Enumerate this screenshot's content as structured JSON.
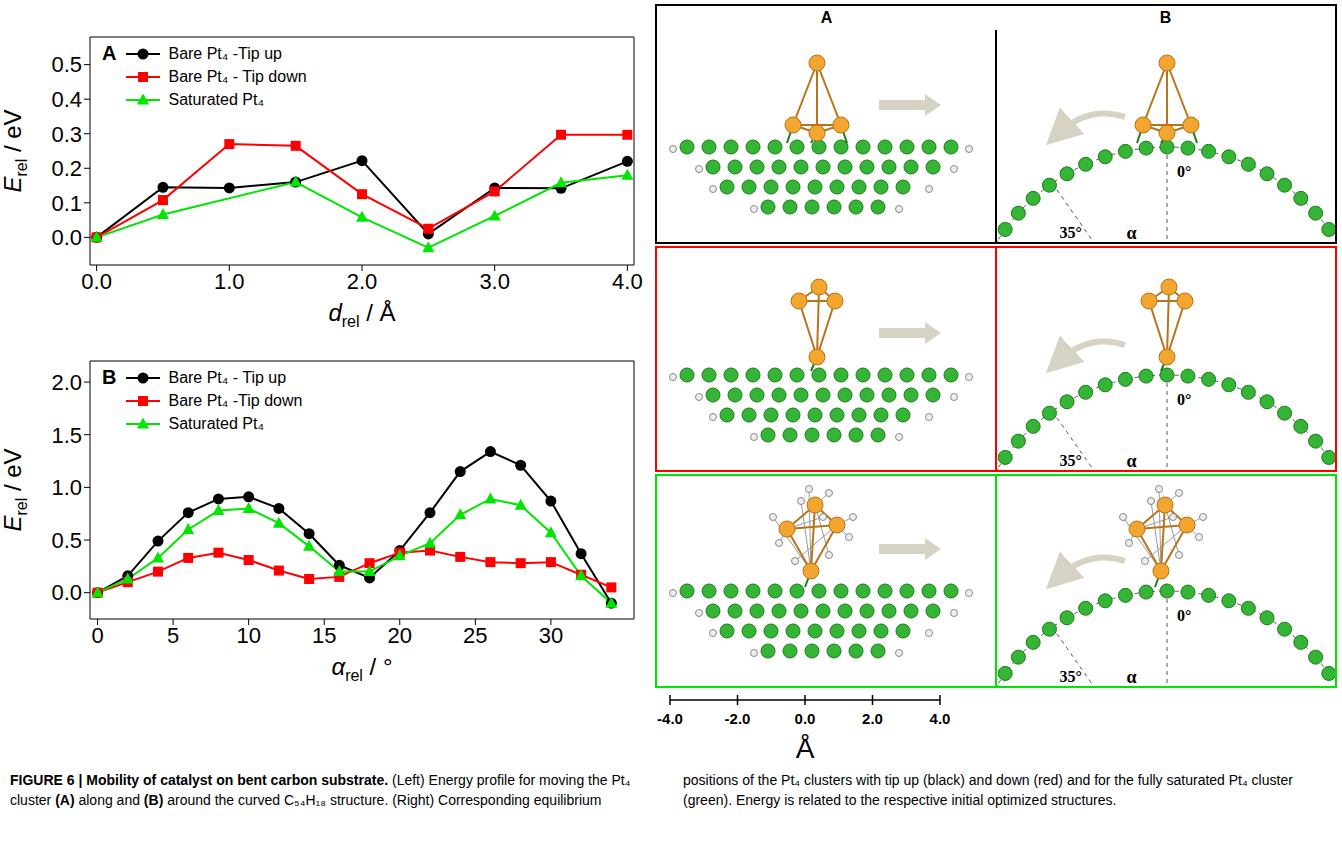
{
  "chart_data": [
    {
      "type": "line",
      "panel_label": "A",
      "xlabel": [
        "d",
        "rel",
        " / Å"
      ],
      "ylabel": [
        "E",
        "rel",
        " / eV"
      ],
      "x": [
        0,
        0.5,
        1,
        1.5,
        2,
        2.5,
        3,
        3.5,
        4
      ],
      "series": [
        {
          "name": "Bare Pt₄ -Tip up",
          "color": "#000000",
          "marker": "circle",
          "values": [
            0,
            0.145,
            0.143,
            0.16,
            0.222,
            0.01,
            0.143,
            0.142,
            0.22
          ]
        },
        {
          "name": "Bare Pt₄ - Tip down",
          "color": "#ff0000",
          "marker": "square",
          "values": [
            0,
            0.108,
            0.27,
            0.265,
            0.125,
            0.025,
            0.133,
            0.297,
            0.297
          ]
        },
        {
          "name": "Saturated Pt₄",
          "color": "#00e600",
          "marker": "triangle",
          "x": [
            0,
            0.5,
            1.5,
            2,
            2.5,
            3,
            3.5,
            4
          ],
          "values": [
            0,
            0.066,
            0.16,
            0.058,
            -0.03,
            0.062,
            0.158,
            0.18
          ]
        }
      ],
      "xlim": [
        -0.05,
        4.05
      ],
      "xticks": [
        {
          "value": 0,
          "label": "0.0"
        },
        {
          "value": 1,
          "label": "1.0"
        },
        {
          "value": 2,
          "label": "2.0"
        },
        {
          "value": 3,
          "label": "3.0"
        },
        {
          "value": 4,
          "label": "4.0"
        }
      ],
      "ylim": [
        -0.08,
        0.58
      ],
      "yticks": [
        {
          "value": 0,
          "label": "0.0"
        },
        {
          "value": 0.1,
          "label": "0.1"
        },
        {
          "value": 0.2,
          "label": "0.2"
        },
        {
          "value": 0.3,
          "label": "0.3"
        },
        {
          "value": 0.4,
          "label": "0.4"
        },
        {
          "value": 0.5,
          "label": "0.5"
        }
      ],
      "legend": "upper left",
      "grid": false
    },
    {
      "type": "line",
      "panel_label": "B",
      "xlabel": [
        "α",
        "rel",
        " / °"
      ],
      "ylabel": [
        "E",
        "rel",
        " / eV"
      ],
      "x": [
        0,
        2,
        4,
        6,
        8,
        10,
        12,
        14,
        16,
        18,
        20,
        22,
        24,
        26,
        28,
        30,
        32,
        34
      ],
      "series": [
        {
          "name": "Bare Pt₄ - Tip up",
          "color": "#000000",
          "marker": "circle",
          "values": [
            0,
            0.16,
            0.49,
            0.76,
            0.89,
            0.91,
            0.8,
            0.56,
            0.26,
            0.14,
            0.4,
            0.76,
            1.15,
            1.34,
            1.21,
            0.87,
            0.37,
            -0.1
          ]
        },
        {
          "name": "Bare Pt₄ -Tip down",
          "color": "#ff0000",
          "marker": "square",
          "values": [
            0,
            0.1,
            0.2,
            0.33,
            0.38,
            0.31,
            0.21,
            0.13,
            0.15,
            0.28,
            0.38,
            0.4,
            0.34,
            0.29,
            0.28,
            0.29,
            0.17,
            0.05
          ]
        },
        {
          "name": "Saturated Pt₄",
          "color": "#00e600",
          "marker": "triangle",
          "values": [
            0,
            0.13,
            0.33,
            0.6,
            0.78,
            0.8,
            0.66,
            0.44,
            0.2,
            0.2,
            0.35,
            0.47,
            0.74,
            0.89,
            0.83,
            0.57,
            0.16,
            -0.1
          ]
        }
      ],
      "xlim": [
        -0.5,
        35.5
      ],
      "xticks": [
        0,
        5,
        10,
        15,
        20,
        25,
        30
      ],
      "ylim": [
        -0.25,
        2.2
      ],
      "yticks": [
        {
          "value": 0,
          "label": "0.0"
        },
        {
          "value": 0.5,
          "label": "0.5"
        },
        {
          "value": 1,
          "label": "1.0"
        },
        {
          "value": 1.5,
          "label": "1.5"
        },
        {
          "value": 2,
          "label": "2.0"
        }
      ],
      "legend": "upper left",
      "grid": false
    }
  ],
  "structures": {
    "columns": [
      "A",
      "B"
    ],
    "angle_marks": [
      {
        "value": 0,
        "label": "0°"
      },
      {
        "value": 35,
        "label": "35°"
      }
    ],
    "angle_label": "α",
    "scale_bar": {
      "ticks": [
        {
          "value": -4,
          "label": "-4.0"
        },
        {
          "value": -2,
          "label": "-2.0"
        },
        {
          "value": 0,
          "label": "0.0"
        },
        {
          "value": 2,
          "label": "2.0"
        },
        {
          "value": 4,
          "label": "4.0"
        }
      ],
      "unit": "Å"
    }
  },
  "caption": [
    {
      "text": "FIGURE 6 | Mobility of catalyst on bent carbon substrate.",
      "bold": true
    },
    {
      "text": " (Left) Energy profile for moving the Pt₄ cluster ",
      "bold": false
    },
    {
      "text": "(A)",
      "bold": true
    },
    {
      "text": " along and ",
      "bold": false
    },
    {
      "text": "(B)",
      "bold": true
    },
    {
      "text": " around the curved C₅₄H₁₈ structure. (Right) Corresponding equilibrium positions of the Pt₄ clusters with tip up (black) and down (red) and for the fully saturated Pt₄ cluster (green). Energy is related to the respective initial optimized structures.",
      "bold": false
    }
  ]
}
